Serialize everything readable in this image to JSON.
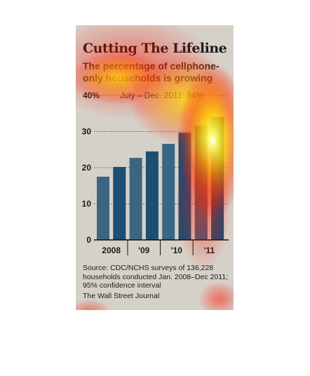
{
  "card": {
    "title": "Cutting The Lifeline",
    "subtitle": "The percentage of cellphone-only households is growing",
    "source": "Source: CDC/NCHS surveys of 136,228 households conducted Jan. 2008–Dec 2011; 95% confidence interval",
    "credit": "The Wall Street Journal"
  },
  "chart_data": {
    "type": "bar",
    "title": "Cutting The Lifeline",
    "subtitle": "The percentage of cellphone-only households is growing",
    "periods": [
      "2008 H1",
      "2008 H2",
      "2009 H1",
      "2009 H2",
      "2010 H1",
      "2010 H2",
      "2011 H1",
      "2011 H2"
    ],
    "values": [
      17.5,
      20.2,
      22.7,
      24.5,
      26.6,
      29.7,
      31.6,
      34.0
    ],
    "x_tick_labels": [
      "2008",
      "'09",
      "'10",
      "'11"
    ],
    "y_ticks": [
      0,
      10,
      20,
      30
    ],
    "y_top_label": "40%",
    "ylim": [
      0,
      40
    ],
    "annotation": "July – Dec. 2011: 34%",
    "grid": true,
    "colors": {
      "bar_light": "#3a6684",
      "bar_dark": "#1d4e73",
      "background": "#d6d1c8"
    },
    "heatmap_overlay": true
  }
}
